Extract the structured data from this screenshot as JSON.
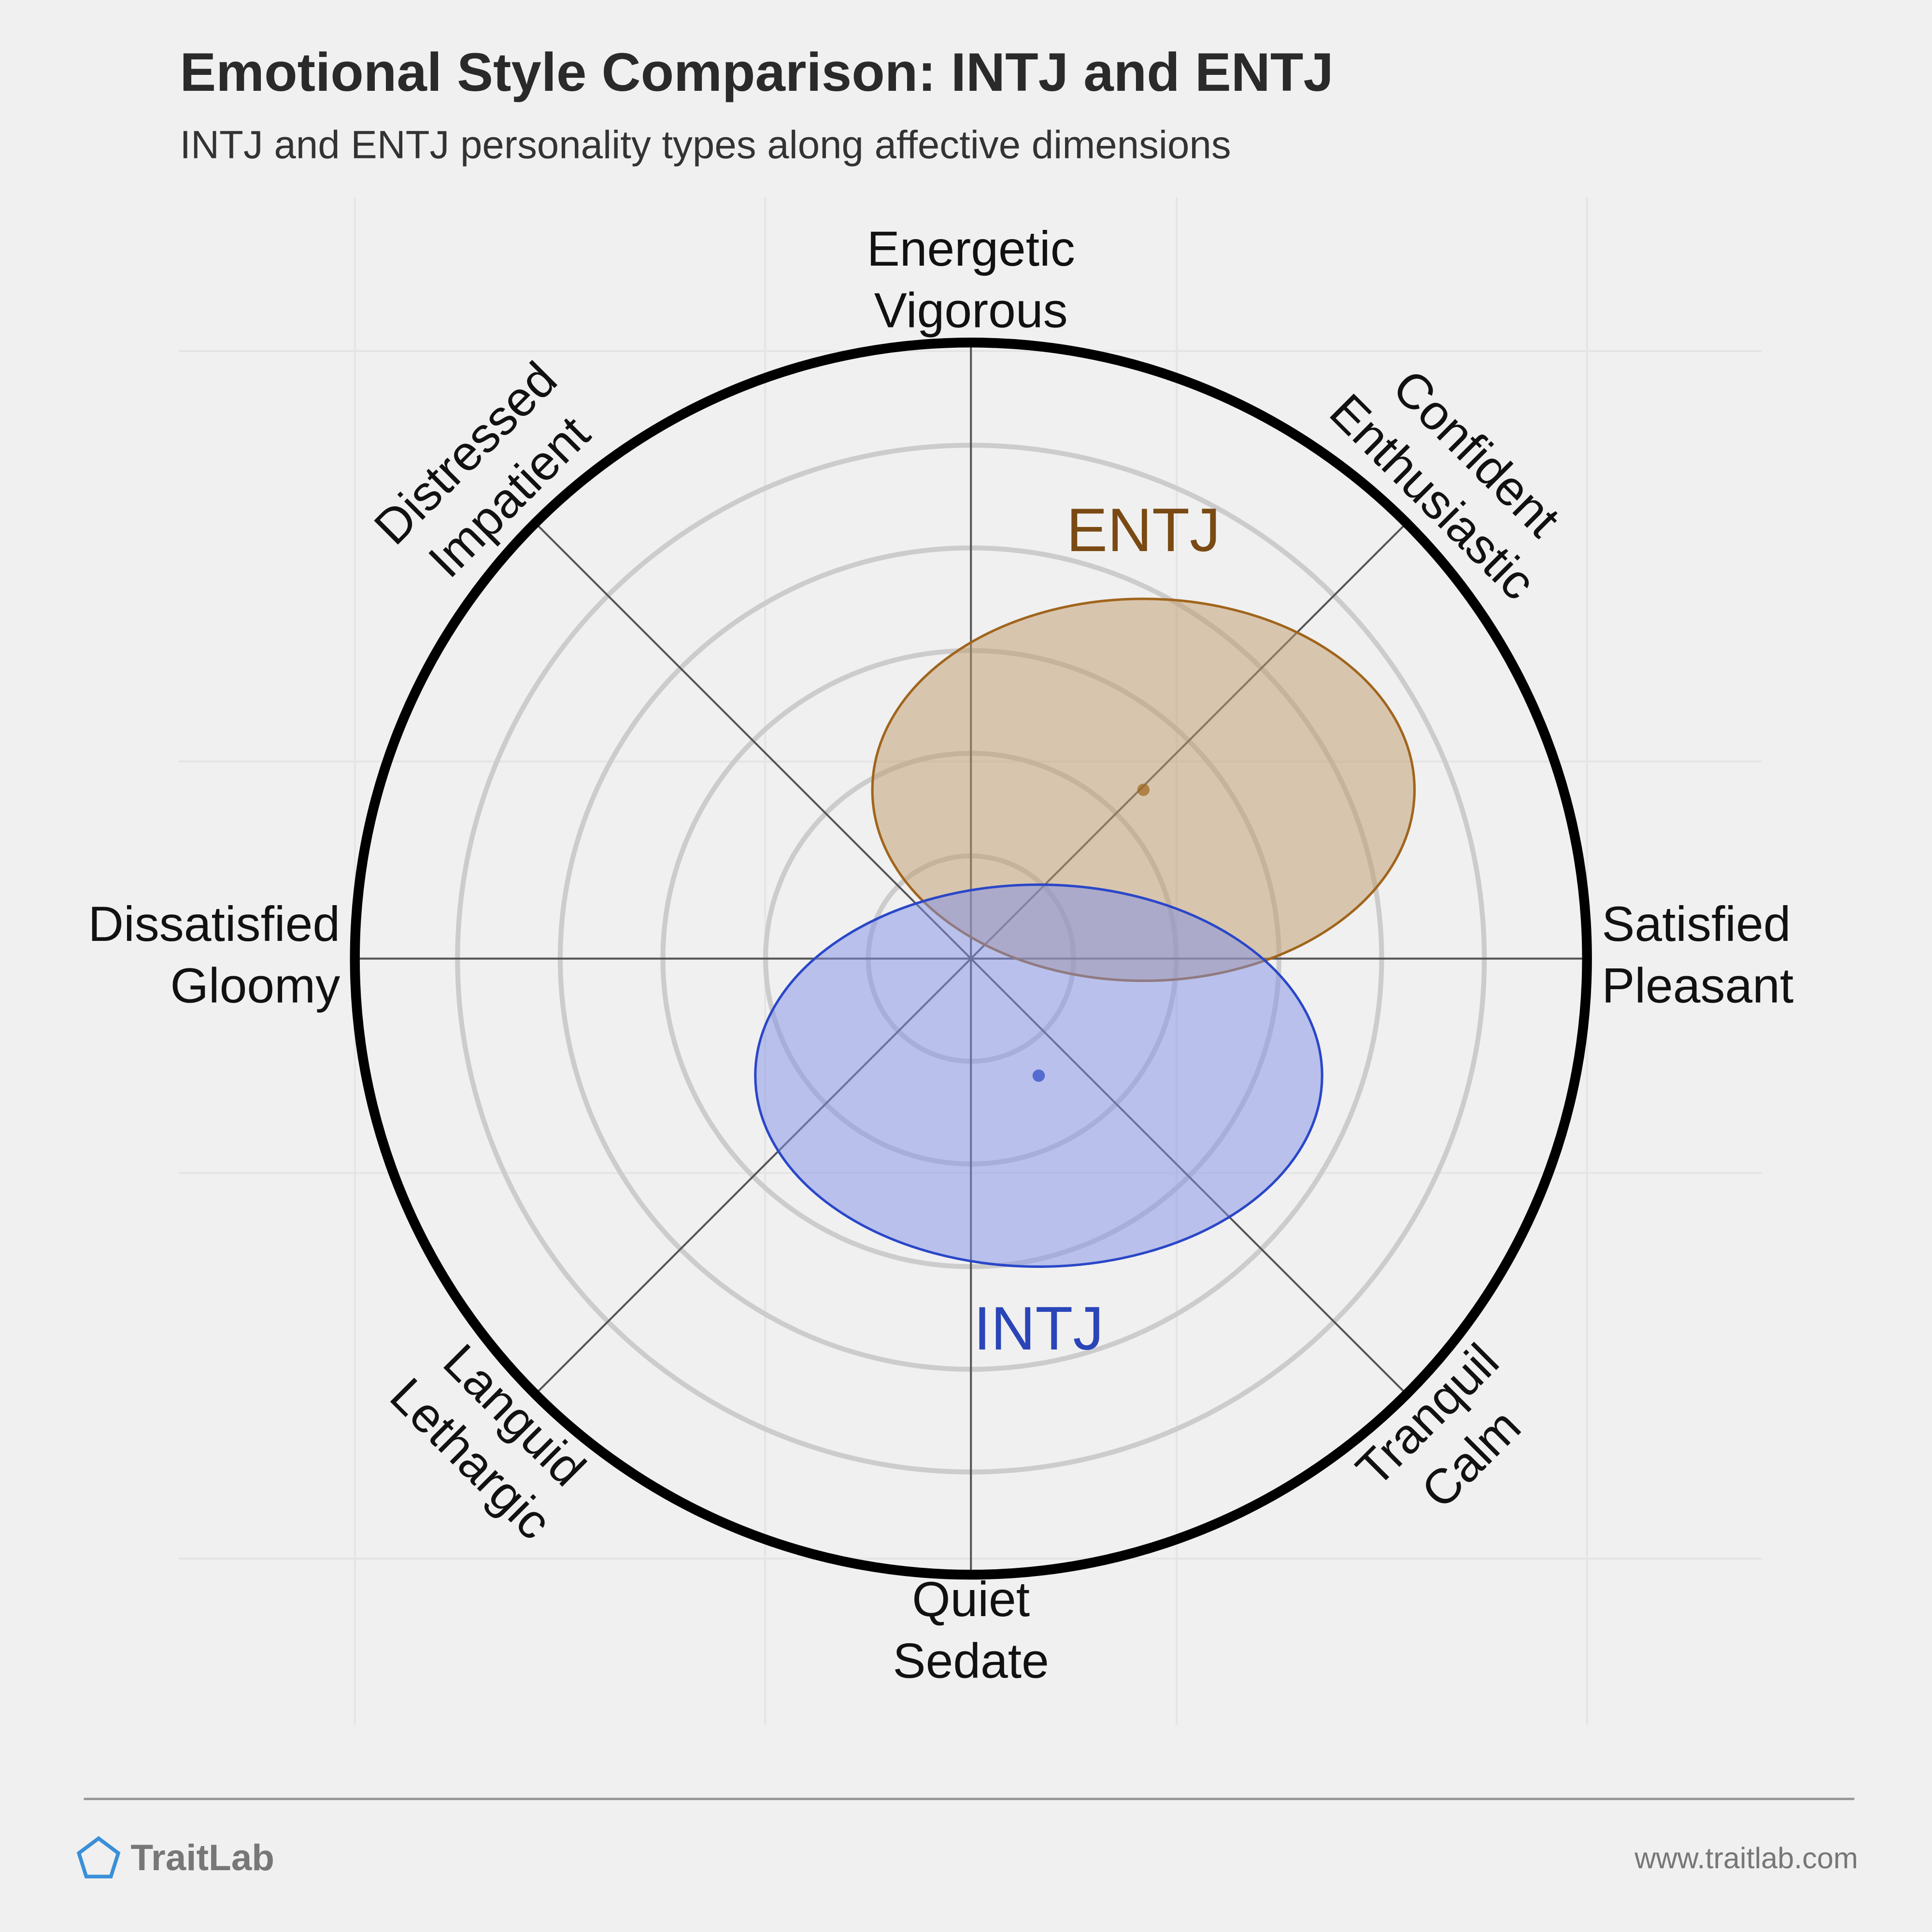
{
  "chart_data": {
    "type": "circumplex",
    "title": "Emotional Style Comparison: INTJ and ENTJ",
    "subtitle": "INTJ and ENTJ personality types along affective dimensions",
    "axes": [
      [
        "Energetic",
        "Vigorous"
      ],
      [
        "Confident",
        "Enthusiastic"
      ],
      [
        "Satisfied",
        "Pleasant"
      ],
      [
        "Tranquil",
        "Calm"
      ],
      [
        "Quiet",
        "Sedate"
      ],
      [
        "Languid",
        "Lethargic"
      ],
      [
        "Dissatisfied",
        "Gloomy"
      ],
      [
        "Distressed",
        "Impatient"
      ]
    ],
    "xlim": [
      -1,
      1
    ],
    "ylim": [
      -1,
      1
    ],
    "grid": true,
    "series": [
      {
        "name": "ENTJ",
        "color": "#a0651c",
        "fill": "#c09a6b",
        "label_color": "#7a4a14",
        "x": 0.28,
        "y": 0.274,
        "rx": 0.44,
        "ry": 0.31
      },
      {
        "name": "INTJ",
        "color": "#2a47c8",
        "fill": "#7f8fe6",
        "label_color": "#2a45b8",
        "x": 0.11,
        "y": -0.19,
        "rx": 0.46,
        "ry": 0.31
      }
    ]
  },
  "footer": {
    "brand": "TraitLab",
    "url": "www.traitlab.com"
  }
}
